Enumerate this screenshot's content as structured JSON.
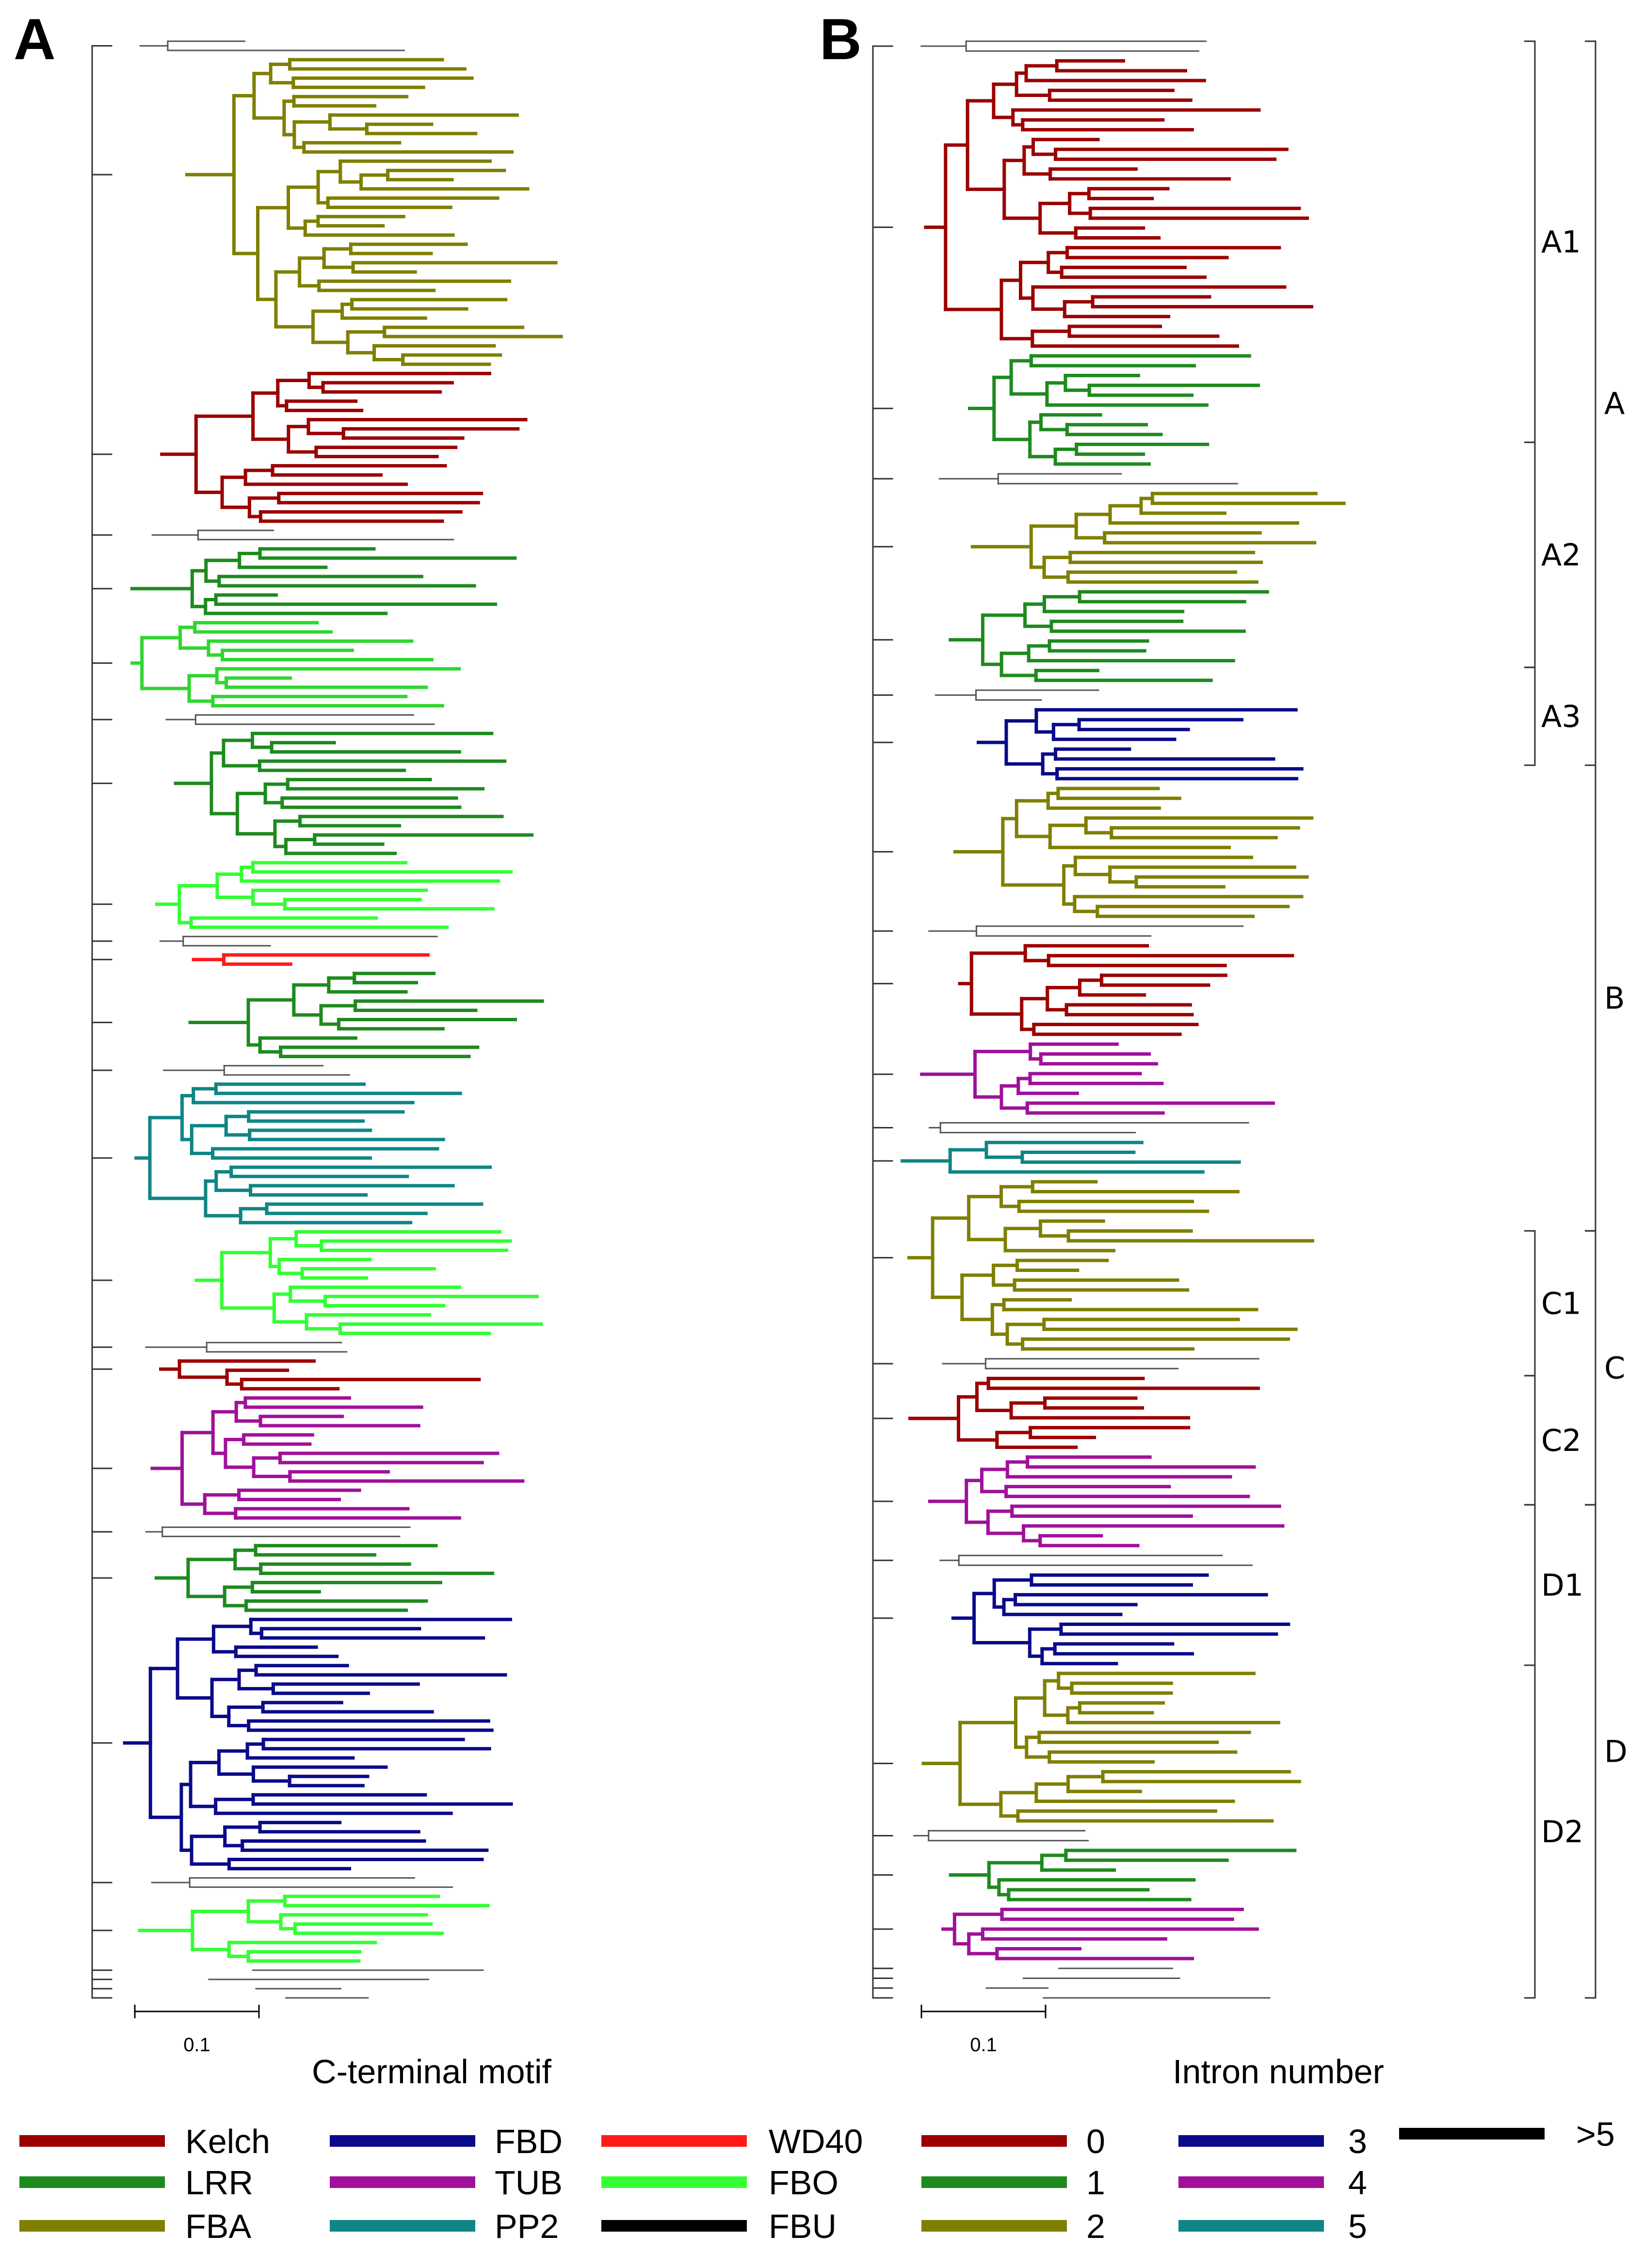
{
  "panels": {
    "left": {
      "letter": "A",
      "caption": "C-terminal motif",
      "scale_label": "0.1",
      "seed": 11,
      "blocks": [
        {
          "color": "#7f7f00",
          "leaves": 34
        },
        {
          "color": "#9b0000",
          "leaves": 17
        },
        {
          "color": "#1e8a1e",
          "leaves": 8
        },
        {
          "color": "#2fd62f",
          "leaves": 10
        },
        {
          "color": "#1e8a1e",
          "leaves": 14
        },
        {
          "color": "#33ff33",
          "leaves": 8
        },
        {
          "color": "#ff1a1a",
          "leaves": 2
        },
        {
          "color": "#1e8a1e",
          "leaves": 10
        },
        {
          "color": "#0f8585",
          "leaves": 16
        },
        {
          "color": "#33ff33",
          "leaves": 12
        },
        {
          "color": "#9b0000",
          "leaves": 4
        },
        {
          "color": "#a0109a",
          "leaves": 14
        },
        {
          "color": "#1e8a1e",
          "leaves": 8
        },
        {
          "color": "#0a0a8a",
          "leaves": 28
        },
        {
          "color": "#33ff33",
          "leaves": 8
        }
      ]
    },
    "right": {
      "letter": "B",
      "caption": "Intron number",
      "scale_label": "0.1",
      "seed": 29,
      "blocks": [
        {
          "color": "#9b0000",
          "leaves": 30
        },
        {
          "color": "#1e8a1e",
          "leaves": 12
        },
        {
          "color": "#7f7f00",
          "leaves": 10
        },
        {
          "color": "#1e8a1e",
          "leaves": 10
        },
        {
          "color": "#0a0a8a",
          "leaves": 8
        },
        {
          "color": "#7f7f00",
          "leaves": 14
        },
        {
          "color": "#9b0000",
          "leaves": 10
        },
        {
          "color": "#a0109a",
          "leaves": 8
        },
        {
          "color": "#0f8585",
          "leaves": 4
        },
        {
          "color": "#7f7f00",
          "leaves": 18
        },
        {
          "color": "#9b0000",
          "leaves": 8
        },
        {
          "color": "#a0109a",
          "leaves": 10
        },
        {
          "color": "#0a0a8a",
          "leaves": 10
        },
        {
          "color": "#7f7f00",
          "leaves": 16
        },
        {
          "color": "#1e8a1e",
          "leaves": 6
        },
        {
          "color": "#a0109a",
          "leaves": 6
        }
      ]
    }
  },
  "clades": {
    "sub": [
      {
        "label": "A1",
        "from": 0.0,
        "to": 0.205
      },
      {
        "label": "A2",
        "from": 0.205,
        "to": 0.32
      },
      {
        "label": "A3",
        "from": 0.32,
        "to": 0.37
      },
      {
        "label": "C1",
        "from": 0.608,
        "to": 0.682
      },
      {
        "label": "C2",
        "from": 0.682,
        "to": 0.748
      },
      {
        "label": "D1",
        "from": 0.748,
        "to": 0.83
      },
      {
        "label": "D2",
        "from": 0.83,
        "to": 1.0
      }
    ],
    "main": [
      {
        "label": "A",
        "from": 0.0,
        "to": 0.37
      },
      {
        "label": "B",
        "from": 0.37,
        "to": 0.608
      },
      {
        "label": "C",
        "from": 0.608,
        "to": 0.748
      },
      {
        "label": "D",
        "from": 0.748,
        "to": 1.0
      }
    ]
  },
  "legend": [
    {
      "label": "Kelch",
      "color": "#9b0000"
    },
    {
      "label": "LRR",
      "color": "#1e8a1e"
    },
    {
      "label": "FBA",
      "color": "#7f7f00"
    },
    {
      "label": "FBD",
      "color": "#0a0a8a"
    },
    {
      "label": "TUB",
      "color": "#a0109a"
    },
    {
      "label": "PP2",
      "color": "#0f8585"
    },
    {
      "label": "WD40",
      "color": "#ff1a1a"
    },
    {
      "label": "FBO",
      "color": "#33ff33"
    },
    {
      "label": "FBU",
      "color": "#000000"
    },
    {
      "label": "0",
      "color": "#9b0000"
    },
    {
      "label": "1",
      "color": "#1e8a1e"
    },
    {
      "label": "2",
      "color": "#7f7f00"
    },
    {
      "label": "3",
      "color": "#0a0a8a"
    },
    {
      "label": "4",
      "color": "#a0109a"
    },
    {
      "label": "5",
      "color": "#0f8585"
    },
    {
      "label": ">5",
      "color": "#000000"
    }
  ]
}
